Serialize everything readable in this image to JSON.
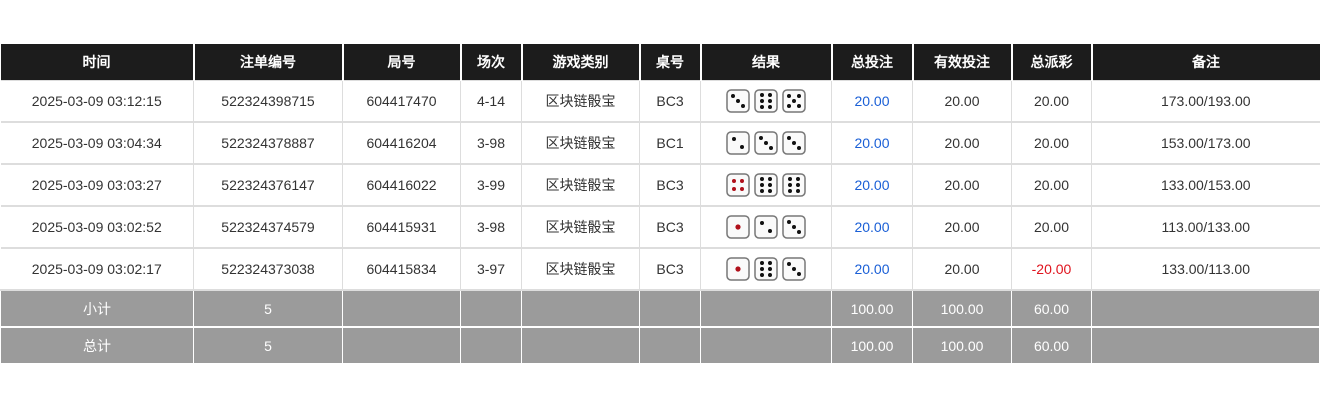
{
  "headers": [
    "时间",
    "注单编号",
    "局号",
    "场次",
    "游戏类别",
    "桌号",
    "结果",
    "总投注",
    "有效投注",
    "总派彩",
    "备注"
  ],
  "rows": [
    {
      "time": "2025-03-09 03:12:15",
      "bet_id": "522324398715",
      "round": "604417470",
      "session": "4-14",
      "game": "区块链骰宝",
      "table": "BC3",
      "dice": [
        3,
        6,
        5
      ],
      "total_bet": "20.00",
      "valid_bet": "20.00",
      "payout": "20.00",
      "note": "173.00/193.00"
    },
    {
      "time": "2025-03-09 03:04:34",
      "bet_id": "522324378887",
      "round": "604416204",
      "session": "3-98",
      "game": "区块链骰宝",
      "table": "BC1",
      "dice": [
        2,
        3,
        3
      ],
      "total_bet": "20.00",
      "valid_bet": "20.00",
      "payout": "20.00",
      "note": "153.00/173.00"
    },
    {
      "time": "2025-03-09 03:03:27",
      "bet_id": "522324376147",
      "round": "604416022",
      "session": "3-99",
      "game": "区块链骰宝",
      "table": "BC3",
      "dice": [
        4,
        6,
        6
      ],
      "total_bet": "20.00",
      "valid_bet": "20.00",
      "payout": "20.00",
      "note": "133.00/153.00"
    },
    {
      "time": "2025-03-09 03:02:52",
      "bet_id": "522324374579",
      "round": "604415931",
      "session": "3-98",
      "game": "区块链骰宝",
      "table": "BC3",
      "dice": [
        1,
        2,
        3
      ],
      "total_bet": "20.00",
      "valid_bet": "20.00",
      "payout": "20.00",
      "note": "113.00/133.00"
    },
    {
      "time": "2025-03-09 03:02:17",
      "bet_id": "522324373038",
      "round": "604415834",
      "session": "3-97",
      "game": "区块链骰宝",
      "table": "BC3",
      "dice": [
        1,
        6,
        3
      ],
      "total_bet": "20.00",
      "valid_bet": "20.00",
      "payout": "-20.00",
      "note": "133.00/113.00"
    }
  ],
  "subtotal": {
    "label": "小计",
    "count": "5",
    "total_bet": "100.00",
    "valid_bet": "100.00",
    "payout": "60.00"
  },
  "total": {
    "label": "总计",
    "count": "5",
    "total_bet": "100.00",
    "valid_bet": "100.00",
    "payout": "60.00"
  },
  "colors": {
    "header_bg": "#1c1c1c",
    "bet_link": "#1a5fd6",
    "negative": "#e0141e",
    "summary_bg": "#9b9b9b"
  }
}
